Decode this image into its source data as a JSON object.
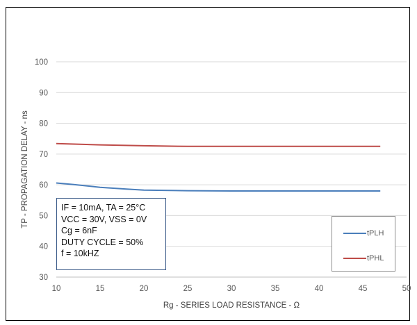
{
  "chart_data": {
    "type": "line",
    "xlabel": "Rg - SERIES LOAD RESISTANCE - Ω",
    "ylabel": "TP - PROPAGATION DELAY - ns",
    "xlim": [
      10,
      50
    ],
    "ylim": [
      30,
      100
    ],
    "x_ticks": [
      "10",
      "15",
      "20",
      "25",
      "30",
      "35",
      "40",
      "45",
      "50"
    ],
    "y_ticks": [
      "30",
      "40",
      "50",
      "60",
      "70",
      "80",
      "90",
      "100"
    ],
    "grid": "horizontal",
    "legend_position": "bottom-right",
    "series": [
      {
        "name": "tPLH",
        "color": "#4a7ebb",
        "x": [
          10,
          12,
          15,
          18,
          20,
          25,
          30,
          35,
          40,
          45,
          47
        ],
        "y": [
          60.6,
          60.1,
          59.2,
          58.6,
          58.3,
          58.1,
          58.0,
          58.0,
          58.0,
          58.0,
          58.0
        ]
      },
      {
        "name": "tPHL",
        "color": "#be4b48",
        "x": [
          10,
          15,
          20,
          25,
          30,
          35,
          40,
          45,
          47
        ],
        "y": [
          73.4,
          73.0,
          72.7,
          72.5,
          72.5,
          72.5,
          72.5,
          72.5,
          72.5
        ]
      }
    ],
    "annotation": [
      "IF = 10mA, TA = 25°C",
      "VCC = 30V, VSS = 0V",
      "Cg = 6nF",
      "DUTY CYCLE = 50%",
      "f = 10kHZ"
    ]
  }
}
